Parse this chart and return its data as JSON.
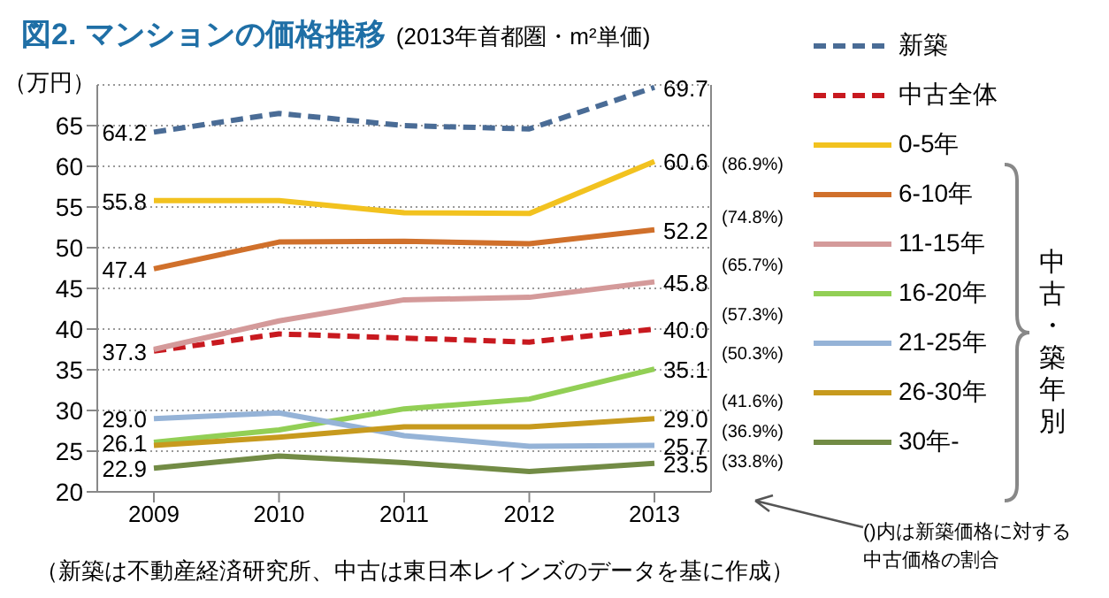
{
  "chart_data": {
    "type": "line",
    "title": "図2. マンションの価格推移",
    "subtitle": "(2013年首都圏・m²単価)",
    "ylabel": "（万円）",
    "categories": [
      "2009",
      "2010",
      "2011",
      "2012",
      "2013"
    ],
    "ylim": [
      20,
      70
    ],
    "yticks": [
      20,
      25,
      30,
      35,
      40,
      45,
      50,
      55,
      60,
      65
    ],
    "grid": "y",
    "legend": "right",
    "marker": "none",
    "series": [
      {
        "name": "新築",
        "color": "#4a6c96",
        "line_style": "dashed",
        "values": [
          64.2,
          66.5,
          65.0,
          64.6,
          69.7
        ],
        "value_labels": [
          "64.2",
          null,
          null,
          null,
          "69.7"
        ]
      },
      {
        "name": "中古全体",
        "color": "#c8191f",
        "line_style": "dashed",
        "values": [
          37.3,
          39.4,
          38.9,
          38.4,
          40.0
        ],
        "value_labels": [
          "37.3",
          null,
          null,
          null,
          "40.0"
        ]
      },
      {
        "name": "0-5年",
        "color": "#f2c21f",
        "line_style": "solid",
        "values": [
          55.8,
          55.8,
          54.3,
          54.2,
          60.6
        ],
        "value_labels": [
          "55.8",
          null,
          null,
          null,
          "60.6"
        ]
      },
      {
        "name": "6-10年",
        "color": "#d0702b",
        "line_style": "solid",
        "values": [
          47.4,
          50.7,
          50.8,
          50.5,
          52.2
        ],
        "value_labels": [
          "47.4",
          null,
          null,
          null,
          "52.2"
        ]
      },
      {
        "name": "11-15年",
        "color": "#d49a9a",
        "line_style": "solid",
        "values": [
          37.5,
          41.0,
          43.6,
          43.9,
          45.8
        ],
        "value_labels": [
          null,
          null,
          null,
          null,
          "45.8"
        ]
      },
      {
        "name": "16-20年",
        "color": "#92cf55",
        "line_style": "solid",
        "values": [
          26.1,
          27.6,
          30.2,
          31.4,
          35.1
        ],
        "value_labels": [
          "26.1",
          null,
          null,
          null,
          "35.1"
        ]
      },
      {
        "name": "21-25年",
        "color": "#95b3d7",
        "line_style": "solid",
        "values": [
          29.0,
          29.7,
          26.9,
          25.6,
          25.7
        ],
        "value_labels": [
          "29.0",
          null,
          null,
          null,
          "25.7"
        ]
      },
      {
        "name": "26-30年",
        "color": "#c79a1e",
        "line_style": "solid",
        "values": [
          25.7,
          26.7,
          28.0,
          28.0,
          29.0
        ],
        "value_labels": [
          null,
          null,
          null,
          null,
          "29.0"
        ]
      },
      {
        "name": "30年-",
        "color": "#728b45",
        "line_style": "solid",
        "values": [
          22.9,
          24.4,
          23.6,
          22.5,
          23.5
        ],
        "value_labels": [
          "22.9",
          null,
          null,
          null,
          "23.5"
        ]
      }
    ],
    "annotations": [
      "(86.9%)",
      "(74.8%)",
      "(65.7%)",
      "(57.3%)",
      "(50.3%)",
      "(41.6%)",
      "(36.9%)",
      "(33.8%)",
      "中古・築年別",
      "()内は新築価格に対する中古価格の割合",
      "（新築は不動産経済研究所、中古は東日本レインズのデータを基に作成）"
    ]
  }
}
